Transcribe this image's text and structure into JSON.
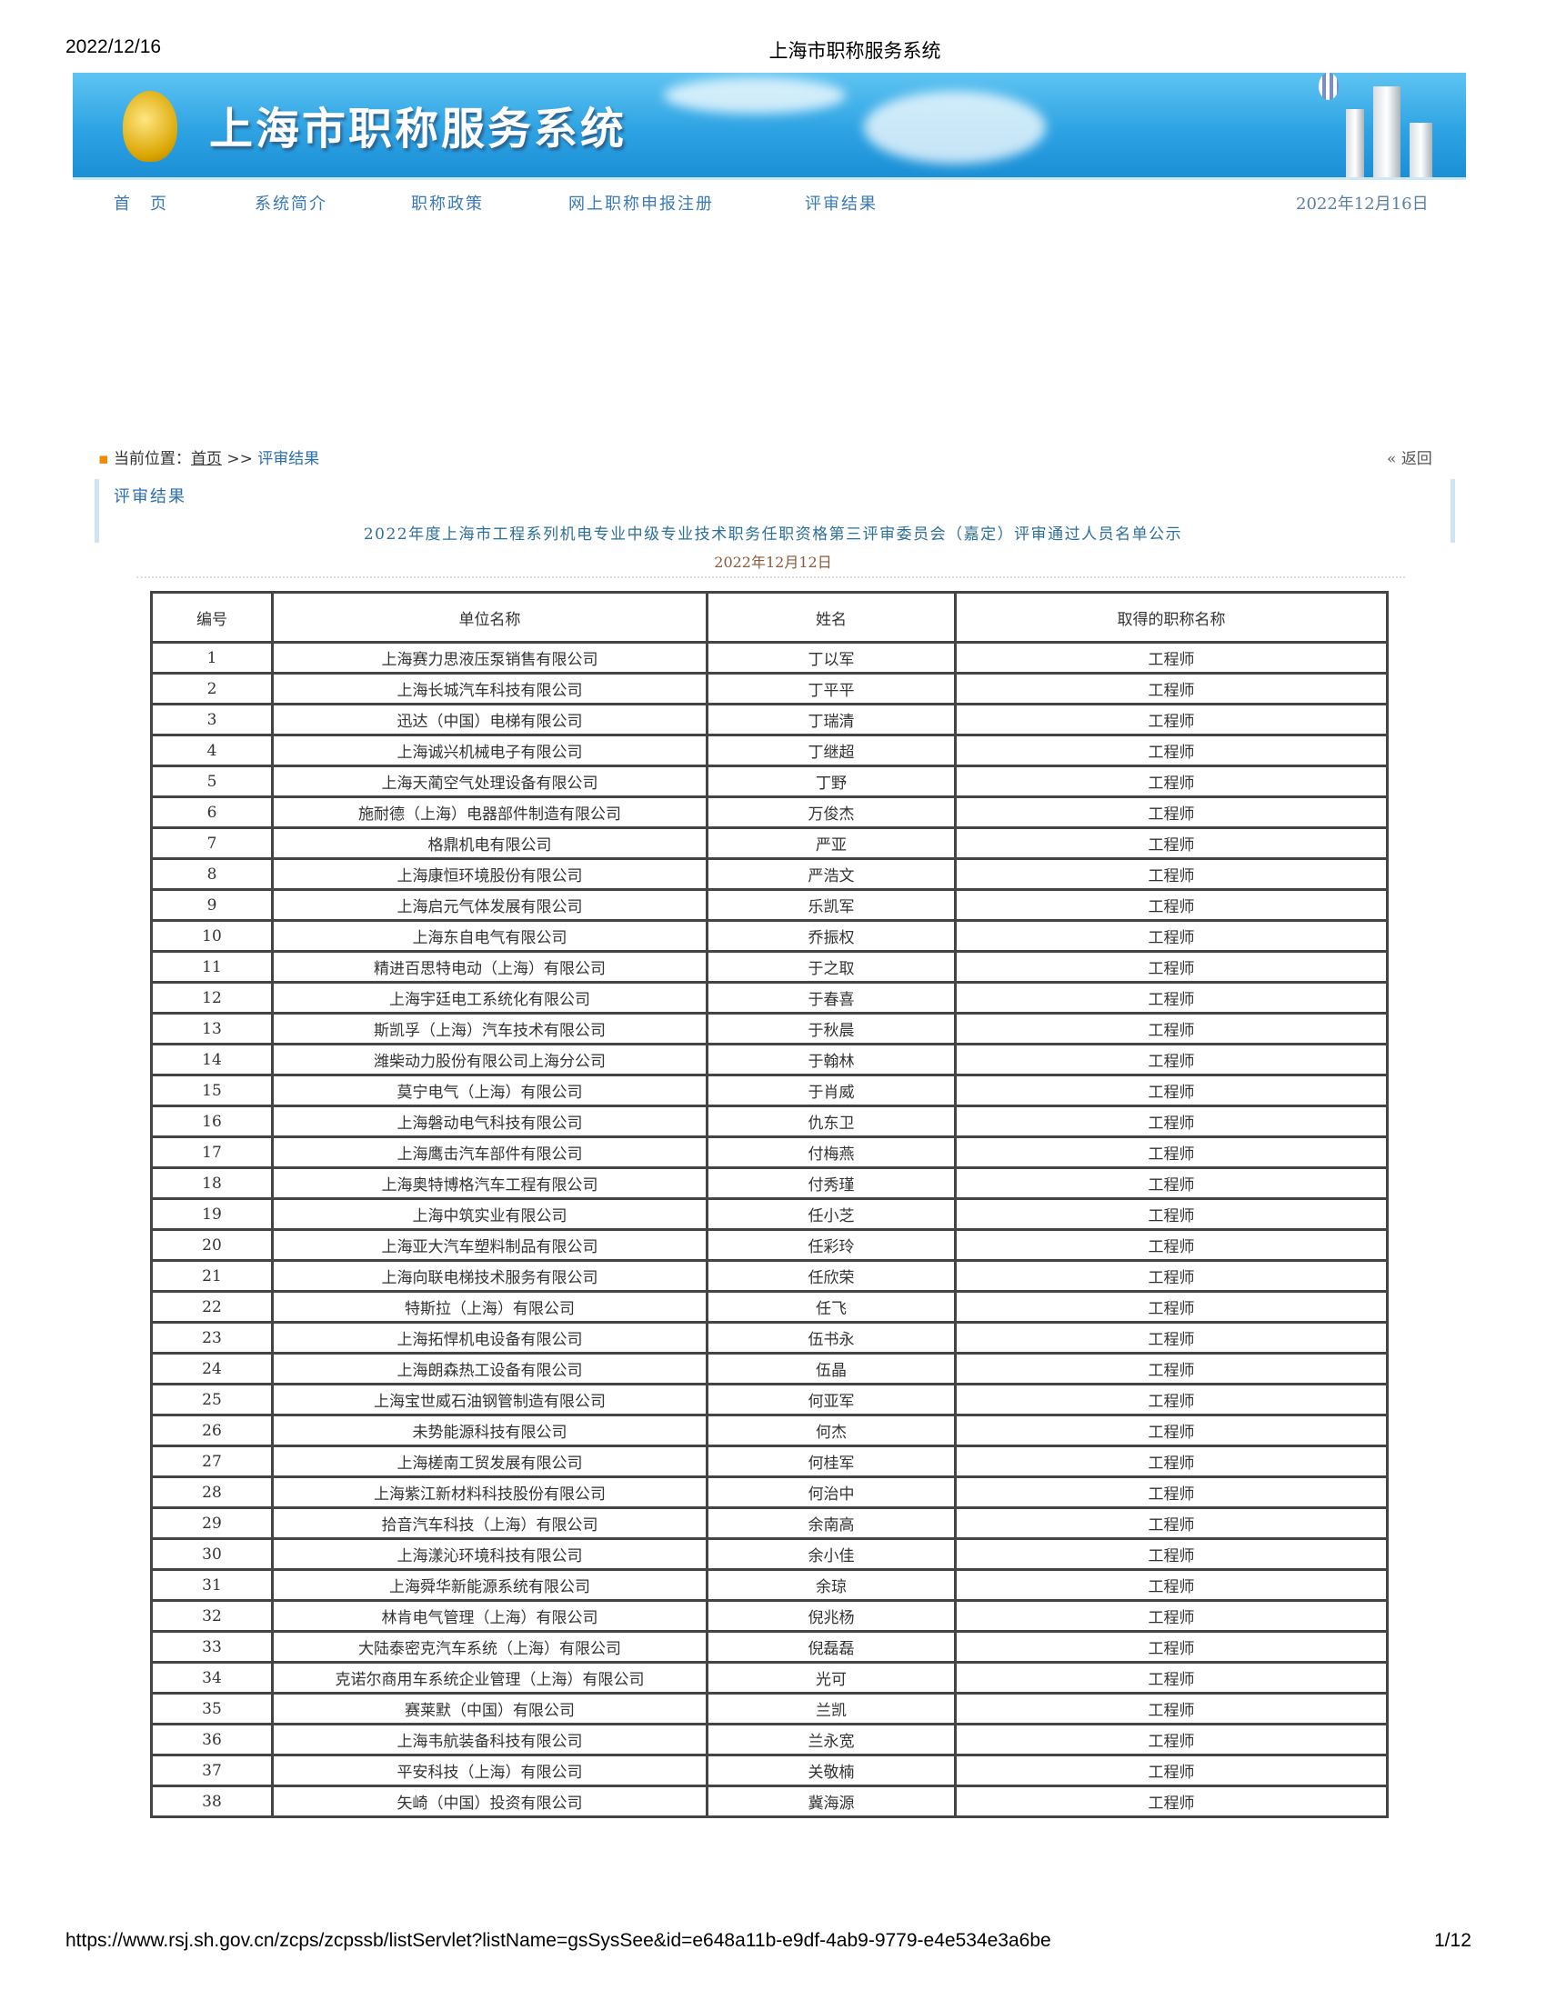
{
  "print_header": {
    "date": "2022/12/16",
    "title": "上海市职称服务系统"
  },
  "banner": {
    "title": "上海市职称服务系统"
  },
  "nav": {
    "items": [
      "首　页",
      "系统简介",
      "职称政策",
      "网上职称申报注册",
      "评审结果"
    ],
    "date": "2022年12月16日"
  },
  "breadcrumb": {
    "prefix": "当前位置：",
    "home": "首页",
    "sep": ">>",
    "current": "评审结果",
    "back": "返回",
    "back_icon": "«"
  },
  "section": {
    "title": "评审结果",
    "heading": "2022年度上海市工程系列机电专业中级专业技术职务任职资格第三评审委员会（嘉定）评审通过人员名单公示",
    "date": "2022年12月12日"
  },
  "table": {
    "headers": [
      "编号",
      "单位名称",
      "姓名",
      "取得的职称名称"
    ],
    "rows": [
      [
        "1",
        "上海赛力思液压泵销售有限公司",
        "丁以军",
        "工程师"
      ],
      [
        "2",
        "上海长城汽车科技有限公司",
        "丁平平",
        "工程师"
      ],
      [
        "3",
        "迅达（中国）电梯有限公司",
        "丁瑞清",
        "工程师"
      ],
      [
        "4",
        "上海诚兴机械电子有限公司",
        "丁继超",
        "工程师"
      ],
      [
        "5",
        "上海天蔺空气处理设备有限公司",
        "丁野",
        "工程师"
      ],
      [
        "6",
        "施耐德（上海）电器部件制造有限公司",
        "万俊杰",
        "工程师"
      ],
      [
        "7",
        "格鼎机电有限公司",
        "严亚",
        "工程师"
      ],
      [
        "8",
        "上海康恒环境股份有限公司",
        "严浩文",
        "工程师"
      ],
      [
        "9",
        "上海启元气体发展有限公司",
        "乐凯军",
        "工程师"
      ],
      [
        "10",
        "上海东自电气有限公司",
        "乔振权",
        "工程师"
      ],
      [
        "11",
        "精进百思特电动（上海）有限公司",
        "于之取",
        "工程师"
      ],
      [
        "12",
        "上海宇廷电工系统化有限公司",
        "于春喜",
        "工程师"
      ],
      [
        "13",
        "斯凯孚（上海）汽车技术有限公司",
        "于秋晨",
        "工程师"
      ],
      [
        "14",
        "潍柴动力股份有限公司上海分公司",
        "于翰林",
        "工程师"
      ],
      [
        "15",
        "莫宁电气（上海）有限公司",
        "于肖威",
        "工程师"
      ],
      [
        "16",
        "上海磐动电气科技有限公司",
        "仇东卫",
        "工程师"
      ],
      [
        "17",
        "上海鹰击汽车部件有限公司",
        "付梅燕",
        "工程师"
      ],
      [
        "18",
        "上海奥特博格汽车工程有限公司",
        "付秀瑾",
        "工程师"
      ],
      [
        "19",
        "上海中筑实业有限公司",
        "任小芝",
        "工程师"
      ],
      [
        "20",
        "上海亚大汽车塑料制品有限公司",
        "任彩玲",
        "工程师"
      ],
      [
        "21",
        "上海向联电梯技术服务有限公司",
        "任欣荣",
        "工程师"
      ],
      [
        "22",
        "特斯拉（上海）有限公司",
        "任飞",
        "工程师"
      ],
      [
        "23",
        "上海拓悍机电设备有限公司",
        "伍书永",
        "工程师"
      ],
      [
        "24",
        "上海朗森热工设备有限公司",
        "伍晶",
        "工程师"
      ],
      [
        "25",
        "上海宝世威石油钢管制造有限公司",
        "何亚军",
        "工程师"
      ],
      [
        "26",
        "未势能源科技有限公司",
        "何杰",
        "工程师"
      ],
      [
        "27",
        "上海槎南工贸发展有限公司",
        "何桂军",
        "工程师"
      ],
      [
        "28",
        "上海紫江新材料科技股份有限公司",
        "何治中",
        "工程师"
      ],
      [
        "29",
        "拾音汽车科技（上海）有限公司",
        "余南高",
        "工程师"
      ],
      [
        "30",
        "上海漾沁环境科技有限公司",
        "余小佳",
        "工程师"
      ],
      [
        "31",
        "上海舜华新能源系统有限公司",
        "余琼",
        "工程师"
      ],
      [
        "32",
        "林肯电气管理（上海）有限公司",
        "倪兆杨",
        "工程师"
      ],
      [
        "33",
        "大陆泰密克汽车系统（上海）有限公司",
        "倪磊磊",
        "工程师"
      ],
      [
        "34",
        "克诺尔商用车系统企业管理（上海）有限公司",
        "光可",
        "工程师"
      ],
      [
        "35",
        "赛莱默（中国）有限公司",
        "兰凯",
        "工程师"
      ],
      [
        "36",
        "上海韦航装备科技有限公司",
        "兰永宽",
        "工程师"
      ],
      [
        "37",
        "平安科技（上海）有限公司",
        "关敬楠",
        "工程师"
      ],
      [
        "38",
        "矢崎（中国）投资有限公司",
        "冀海源",
        "工程师"
      ]
    ]
  },
  "print_footer": {
    "url": "https://www.rsj.sh.gov.cn/zcps/zcpssb/listServlet?listName=gsSysSee&id=e648a11b-e9df-4ab9-9779-e4e534e3a6be",
    "page": "1/12"
  },
  "colors": {
    "nav": "#3a79b8",
    "heading": "#2c6fb0",
    "date": "#8a5a3a"
  }
}
